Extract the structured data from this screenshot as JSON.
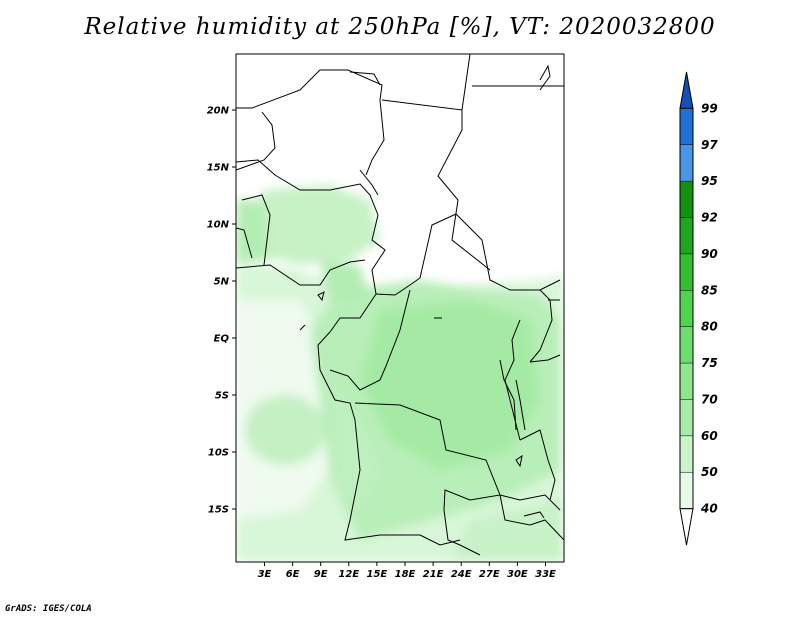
{
  "title": "Relative humidity at 250hPa [%], VT: 2020032800",
  "credit": "GrADS: IGES/COLA",
  "map": {
    "lat_labels": [
      "20N",
      "15N",
      "10N",
      "5N",
      "EQ",
      "5S",
      "10S",
      "15S"
    ],
    "lon_labels": [
      "3E",
      "6E",
      "9E",
      "12E",
      "15E",
      "18E",
      "21E",
      "24E",
      "27E",
      "30E",
      "33E"
    ]
  },
  "colorbar": {
    "levels": [
      "40",
      "50",
      "60",
      "70",
      "75",
      "80",
      "85",
      "90",
      "92",
      "95",
      "97",
      "99"
    ],
    "colors": [
      "#ffffff",
      "#e6fae6",
      "#c8f4c8",
      "#a8eba8",
      "#8ee68e",
      "#6cdd6c",
      "#50d450",
      "#32c032",
      "#1ea61e",
      "#109110",
      "#4a96e6",
      "#2070d8",
      "#1450b8"
    ]
  }
}
